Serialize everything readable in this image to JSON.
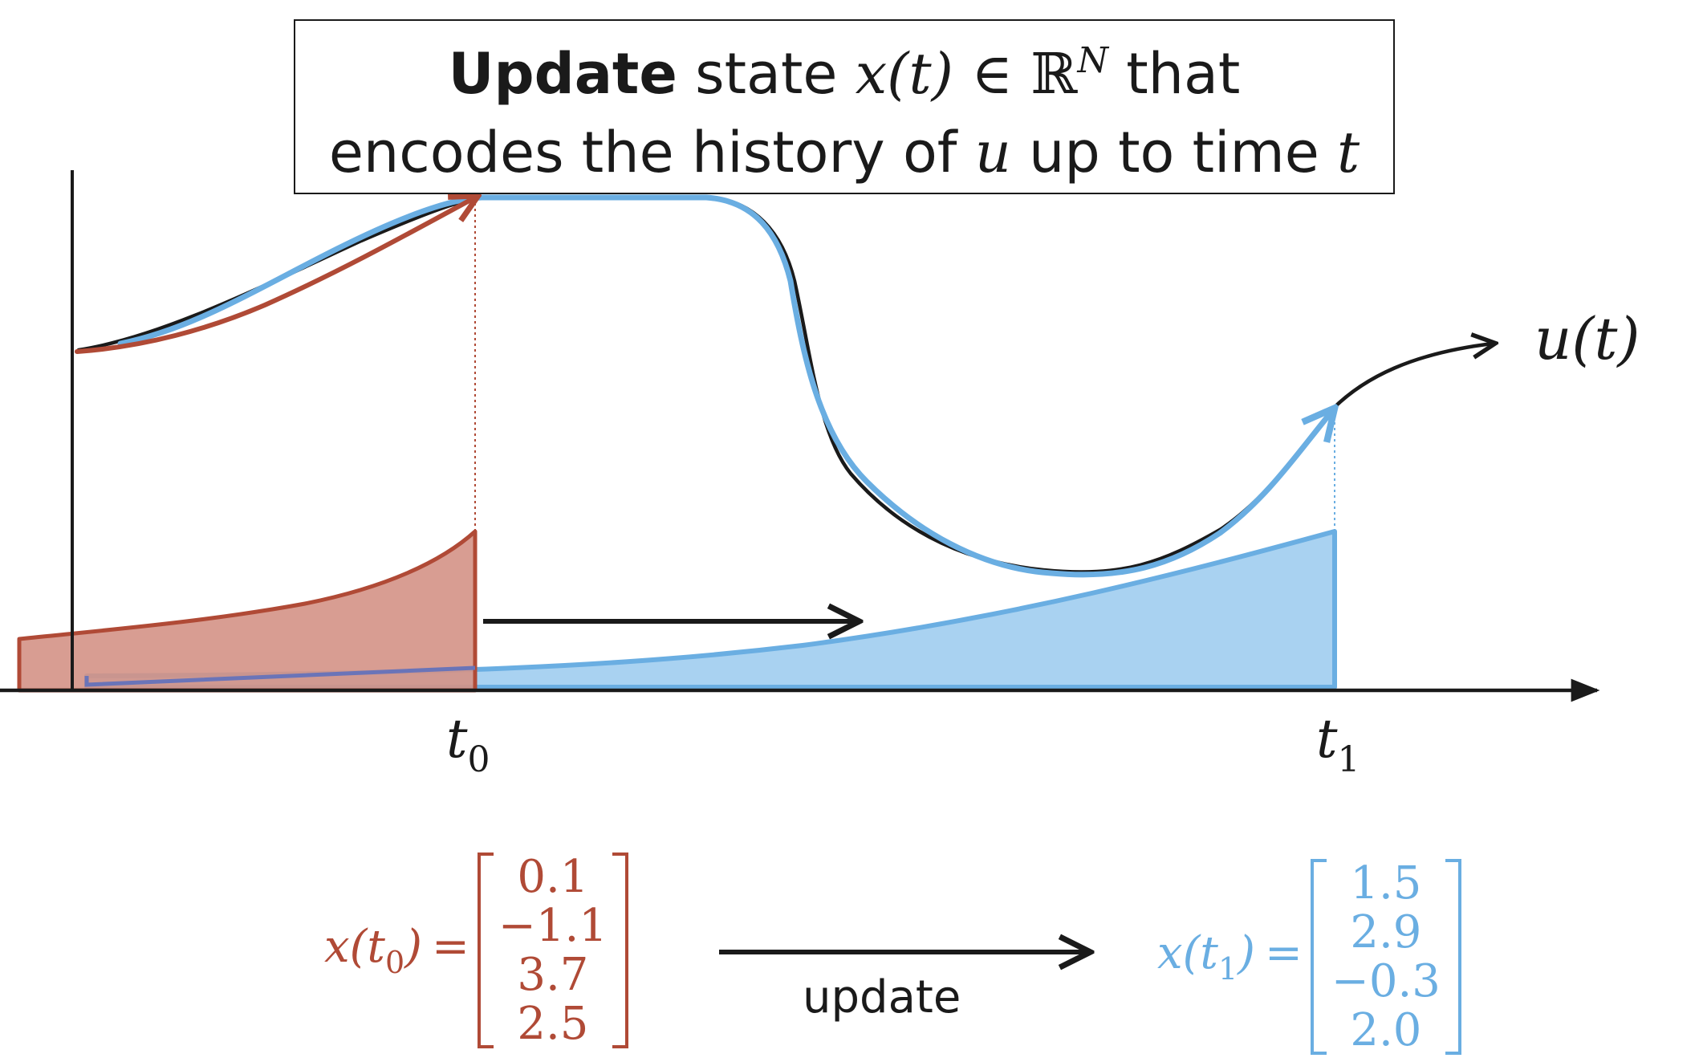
{
  "title": {
    "line1_bold": "Update",
    "line1_text": " state ",
    "line1_state": "x(t)",
    "line1_in": " ∈ ",
    "line1_reals": "ℝ",
    "line1_dim": "N",
    "line1_tail": " that",
    "line2_text": "encodes the history of ",
    "line2_signal": "u",
    "line2_mid": " up to time ",
    "line2_time": "t"
  },
  "curve_label": "u(t)",
  "ticks": {
    "t0_base": "t",
    "t0_sub": "0",
    "t1_base": "t",
    "t1_sub": "1"
  },
  "state_t0": {
    "lhs_base": "x(t",
    "lhs_sub": "0",
    "lhs_close": ")",
    "equals": "=",
    "entries": [
      "0.1",
      "−1.1",
      "3.7",
      "2.5"
    ]
  },
  "state_t1": {
    "lhs_base": "x(t",
    "lhs_sub": "1",
    "lhs_close": ")",
    "equals": "=",
    "entries": [
      "1.5",
      "2.9",
      "−0.3",
      "2.0"
    ]
  },
  "update_label": "update",
  "colors": {
    "red": "#b04a36",
    "red_fill": "#d49286",
    "blue": "#6aaee2",
    "blue_fill": "#a9d2f1",
    "ink": "#1a1a1a"
  }
}
